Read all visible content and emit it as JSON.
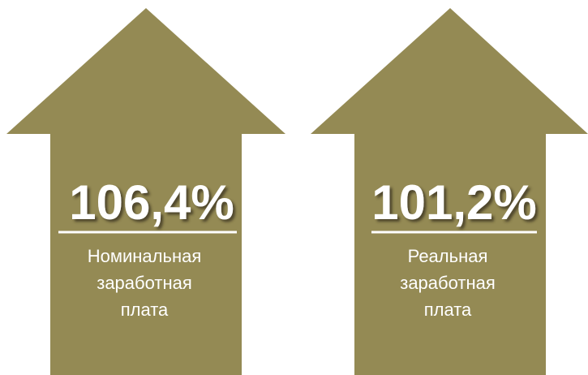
{
  "items": [
    {
      "value": "106,4%",
      "label": [
        "Номинальная",
        "заработная",
        "плата"
      ]
    },
    {
      "value": "101,2%",
      "label": [
        "Реальная",
        "заработная",
        "плата"
      ]
    }
  ]
}
